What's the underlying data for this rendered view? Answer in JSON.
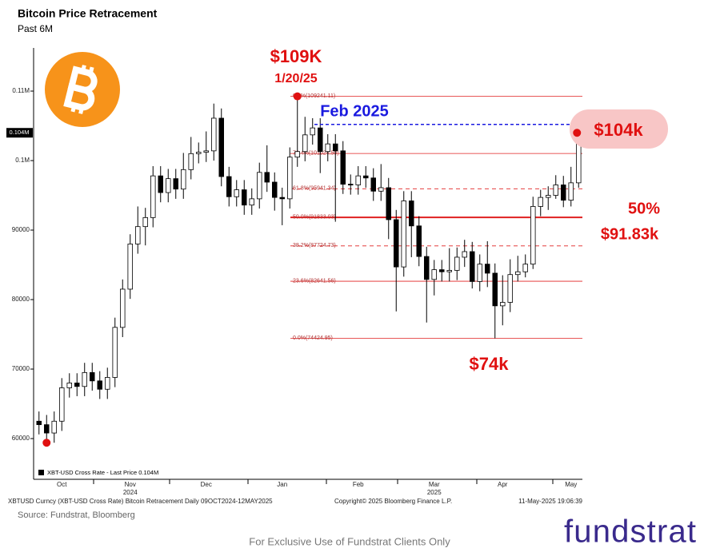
{
  "chart_data": {
    "type": "candlestick",
    "title": "Bitcoin Price Retracement",
    "subtitle": "Past 6M",
    "categories": [
      null,
      null,
      null,
      "Oct",
      null,
      null,
      null,
      null,
      null,
      null,
      null,
      null,
      "Nov",
      null,
      null,
      null,
      null,
      null,
      null,
      null,
      null,
      null,
      "Dec",
      null,
      null,
      null,
      null,
      null,
      null,
      null,
      null,
      null,
      "Jan",
      null,
      null,
      null,
      null,
      null,
      null,
      null,
      null,
      null,
      "Feb",
      null,
      null,
      null,
      null,
      null,
      null,
      null,
      null,
      null,
      "Mar",
      null,
      null,
      null,
      null,
      null,
      null,
      null,
      null,
      "Apr",
      null,
      null,
      null,
      null,
      null,
      null,
      null,
      null,
      "May",
      null
    ],
    "category_years": [
      null,
      null,
      null,
      null,
      null,
      null,
      null,
      null,
      null,
      null,
      null,
      null,
      "2024",
      null,
      null,
      null,
      null,
      null,
      null,
      null,
      null,
      null,
      null,
      null,
      null,
      null,
      null,
      null,
      null,
      null,
      null,
      null,
      null,
      null,
      null,
      null,
      null,
      null,
      null,
      null,
      null,
      null,
      null,
      null,
      null,
      null,
      null,
      null,
      null,
      null,
      null,
      null,
      "2025",
      null,
      null,
      null,
      null,
      null,
      null,
      null,
      null,
      null,
      null,
      null,
      null,
      null,
      null,
      null,
      null,
      null,
      null,
      null
    ],
    "series": [
      {
        "name": "XBT-USD Cross Rate - Last Price 0.104M",
        "color": "#000000",
        "open": [
          62500,
          62000,
          60800,
          62500,
          67300,
          68000,
          67500,
          69500,
          68300,
          67100,
          68800,
          76000,
          81500,
          88000,
          90500,
          91800,
          97800,
          95400,
          97400,
          95900,
          98700,
          101000,
          101200,
          101400,
          106100,
          97700,
          94800,
          95800,
          93600,
          94500,
          98300,
          96900,
          94700,
          94500,
          100500,
          101300,
          103700,
          104700,
          101300,
          102400,
          101400,
          96600,
          96500,
          97800,
          97500,
          95600,
          96100,
          91500,
          84700,
          94200,
          90600,
          86200,
          82900,
          84300,
          84000,
          84200,
          86100,
          86900,
          82600,
          85100,
          83800,
          79100,
          79600,
          83600,
          84000,
          85100,
          93400,
          94700,
          95000,
          96500,
          94300,
          96800
        ],
        "high": [
          63900,
          63400,
          63900,
          68700,
          69400,
          69400,
          70900,
          70900,
          69700,
          70200,
          77400,
          82900,
          89400,
          93400,
          93200,
          99200,
          99200,
          98800,
          98800,
          101100,
          103400,
          102600,
          104200,
          108200,
          107500,
          99100,
          97200,
          97200,
          96000,
          99700,
          102200,
          98300,
          96100,
          101900,
          109241.11,
          106300,
          106100,
          106100,
          103800,
          103800,
          102800,
          98000,
          99200,
          99200,
          98900,
          99500,
          97500,
          92900,
          95600,
          95600,
          92000,
          87600,
          85700,
          85700,
          87400,
          87500,
          88600,
          88300,
          86500,
          88400,
          85200,
          83500,
          85800,
          86300,
          86500,
          94800,
          95800,
          96300,
          97900,
          97800,
          99100,
          105200
        ],
        "low": [
          60600,
          59400,
          59400,
          61100,
          65900,
          66100,
          66100,
          66900,
          65700,
          65700,
          67400,
          74600,
          80100,
          86600,
          87800,
          90400,
          94000,
          94000,
          94500,
          94500,
          97300,
          99600,
          99800,
          100000,
          96300,
          93400,
          93400,
          92200,
          92200,
          93100,
          95500,
          92800,
          90700,
          93100,
          99100,
          99900,
          102300,
          98200,
          99900,
          91200,
          95200,
          95100,
          95100,
          96100,
          94200,
          94200,
          88700,
          78300,
          83300,
          86100,
          84800,
          76700,
          80600,
          82600,
          82600,
          82800,
          84700,
          81600,
          81200,
          81800,
          74424.95,
          76300,
          78200,
          82600,
          83200,
          84400,
          92000,
          92900,
          94500,
          93300,
          93400,
          96100
        ],
        "close": [
          62000,
          60800,
          62500,
          67300,
          68000,
          67500,
          69500,
          68300,
          67100,
          68800,
          76000,
          81500,
          88000,
          90500,
          91800,
          97800,
          95400,
          97400,
          95900,
          98700,
          101000,
          101200,
          101400,
          106100,
          97700,
          94800,
          95800,
          93600,
          94500,
          98300,
          96900,
          94700,
          94500,
          100500,
          101300,
          103700,
          104700,
          101300,
          102400,
          101400,
          96600,
          96500,
          97800,
          97500,
          95600,
          96100,
          91500,
          84700,
          94200,
          90600,
          86200,
          82900,
          84300,
          84000,
          84200,
          86100,
          86900,
          82600,
          85100,
          83800,
          79100,
          79600,
          83600,
          84000,
          85100,
          93400,
          94700,
          95000,
          96500,
          94300,
          96800,
          104000
        ]
      }
    ],
    "ylim": [
      54140,
      116210
    ],
    "yticks": [
      60000,
      70000,
      80000,
      90000,
      {
        "value": 100000,
        "label": "0.1M"
      },
      {
        "value": 110000,
        "label": "0.11M"
      }
    ],
    "last_price": {
      "value": 104000,
      "label": "0.104M"
    },
    "retracement": {
      "color": "#e02020",
      "levels": [
        {
          "label": "0.0%(109241.11)",
          "value": 109241.11,
          "style": "solid"
        },
        {
          "label": "76.4%(101024.50)",
          "value": 101024.5,
          "style": "solid"
        },
        {
          "label": "61.8%(95941.34)",
          "value": 95941.34,
          "style": "dashed"
        },
        {
          "label": "50.0%(91833.03)",
          "value": 91833.03,
          "style": "bold"
        },
        {
          "label": "38.2%(87724.73)",
          "value": 87724.73,
          "style": "dashed"
        },
        {
          "label": "23.6%(82641.56)",
          "value": 82641.56,
          "style": "solid"
        },
        {
          "label": "0.0%(74424.95)",
          "value": 74424.95,
          "style": "solid"
        }
      ]
    },
    "annotations": {
      "high_price": "$109K",
      "high_date": "1/20/25",
      "feb_label": "Feb 2025",
      "feb_level": 105200,
      "current": "$104k",
      "fifty_pct": "50%",
      "fifty_value": "$91.83k",
      "low_price": "$74k"
    },
    "footer": {
      "description": "XBTUSD Curncy (XBT-USD Cross Rate) Bitcoin Retracement  Daily 09OCT2024-12MAY2025",
      "copyright": "Copyright© 2025 Bloomberg Finance L.P.",
      "timestamp": "11-May-2025 19:06:39"
    },
    "source": "Source: Fundstrat, Bloomberg",
    "disclaimer": "For Exclusive Use of Fundstrat Clients Only",
    "logo": "fundstrat"
  }
}
